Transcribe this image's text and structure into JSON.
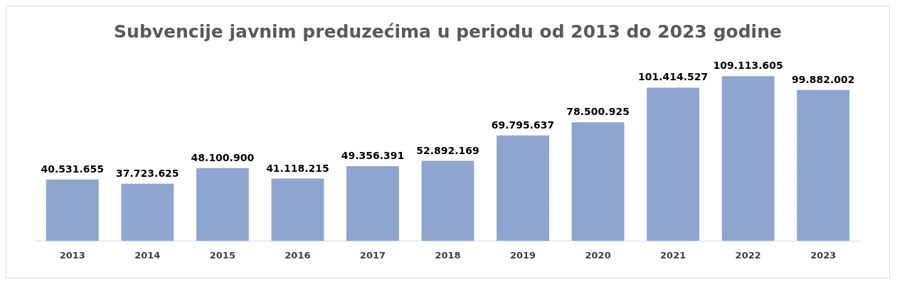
{
  "chart_data": {
    "type": "bar",
    "title": "Subvencije javnim preduzećima u periodu od 2013 do 2023 godine",
    "categories": [
      "2013",
      "2014",
      "2015",
      "2016",
      "2017",
      "2018",
      "2019",
      "2020",
      "2021",
      "2022",
      "2023"
    ],
    "values": [
      40531655,
      37723625,
      48100900,
      41118215,
      49356391,
      52892169,
      69795637,
      78500925,
      101414527,
      109113605,
      99882002
    ],
    "value_labels": [
      "40.531.655",
      "37.723.625",
      "48.100.900",
      "41.118.215",
      "49.356.391",
      "52.892.169",
      "69.795.637",
      "78.500.925",
      "101.414.527",
      "109.113.605",
      "99.882.002"
    ],
    "color": "#8ea5d0"
  }
}
